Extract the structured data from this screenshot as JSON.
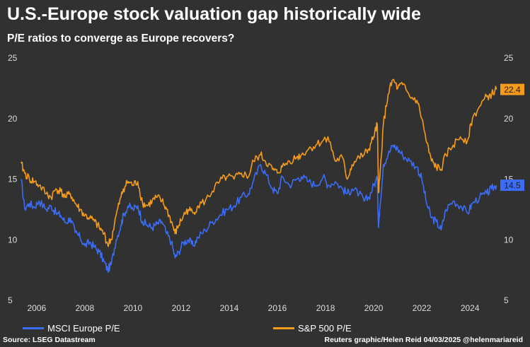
{
  "header": {
    "title": "U.S.-Europe stock valuation gap historically wide",
    "subtitle": "P/E ratios to converge as Europe recovers?"
  },
  "footer": {
    "source": "Source: LSEG Datastream",
    "credit": "Reuters graphic/Helen Reid 04/03/2025 @helenmariareid"
  },
  "colors": {
    "background": "#313131",
    "europe": "#3a6cf5",
    "sp500": "#f59b1c",
    "text": "#ffffff"
  },
  "chart_data": {
    "type": "line",
    "title": "U.S.-Europe stock valuation gap historically wide",
    "subtitle": "P/E ratios to converge as Europe recovers?",
    "xlim": [
      2005.3,
      2025.2
    ],
    "ylim": [
      5,
      25
    ],
    "x_ticks": [
      "2006",
      "2008",
      "2010",
      "2012",
      "2014",
      "2016",
      "2018",
      "2020",
      "2022",
      "2024"
    ],
    "y_ticks": [
      "5",
      "10",
      "15",
      "20",
      "25"
    ],
    "grid": false,
    "legend": "bottom",
    "series": [
      {
        "name": "MSCI Europe P/E",
        "color": "#3a6cf5",
        "end_label": "14.5",
        "points": [
          [
            2005.35,
            15.0
          ],
          [
            2005.5,
            12.6
          ],
          [
            2005.7,
            13.0
          ],
          [
            2005.9,
            12.7
          ],
          [
            2006.1,
            13.2
          ],
          [
            2006.4,
            12.5
          ],
          [
            2006.6,
            12.8
          ],
          [
            2006.8,
            12.2
          ],
          [
            2007.0,
            12.0
          ],
          [
            2007.2,
            11.4
          ],
          [
            2007.4,
            11.8
          ],
          [
            2007.6,
            10.6
          ],
          [
            2007.8,
            10.2
          ],
          [
            2008.0,
            9.5
          ],
          [
            2008.2,
            9.8
          ],
          [
            2008.4,
            9.4
          ],
          [
            2008.6,
            9.0
          ],
          [
            2008.8,
            8.2
          ],
          [
            2008.95,
            7.5
          ],
          [
            2009.1,
            8.0
          ],
          [
            2009.3,
            10.0
          ],
          [
            2009.5,
            11.2
          ],
          [
            2009.6,
            12.0
          ],
          [
            2009.8,
            12.8
          ],
          [
            2010.0,
            12.5
          ],
          [
            2010.2,
            12.8
          ],
          [
            2010.4,
            11.5
          ],
          [
            2010.6,
            11.2
          ],
          [
            2010.8,
            11.0
          ],
          [
            2011.0,
            11.3
          ],
          [
            2011.2,
            11.5
          ],
          [
            2011.4,
            10.5
          ],
          [
            2011.6,
            9.8
          ],
          [
            2011.75,
            8.5
          ],
          [
            2011.9,
            9.0
          ],
          [
            2012.1,
            9.8
          ],
          [
            2012.3,
            10.0
          ],
          [
            2012.5,
            9.5
          ],
          [
            2012.7,
            10.2
          ],
          [
            2013.0,
            10.8
          ],
          [
            2013.3,
            11.5
          ],
          [
            2013.6,
            12.0
          ],
          [
            2013.9,
            12.5
          ],
          [
            2014.2,
            12.8
          ],
          [
            2014.5,
            13.5
          ],
          [
            2014.8,
            13.8
          ],
          [
            2015.0,
            14.8
          ],
          [
            2015.3,
            16.2
          ],
          [
            2015.5,
            15.5
          ],
          [
            2015.8,
            14.2
          ],
          [
            2016.0,
            13.8
          ],
          [
            2016.2,
            15.2
          ],
          [
            2016.5,
            14.5
          ],
          [
            2016.8,
            15.0
          ],
          [
            2017.0,
            15.2
          ],
          [
            2017.3,
            14.8
          ],
          [
            2017.6,
            14.5
          ],
          [
            2017.9,
            15.2
          ],
          [
            2018.1,
            14.5
          ],
          [
            2018.4,
            14.8
          ],
          [
            2018.7,
            14.2
          ],
          [
            2018.9,
            13.8
          ],
          [
            2019.1,
            14.2
          ],
          [
            2019.4,
            13.8
          ],
          [
            2019.6,
            13.2
          ],
          [
            2019.8,
            13.5
          ],
          [
            2020.0,
            14.5
          ],
          [
            2020.15,
            15.0
          ],
          [
            2020.2,
            11.0
          ],
          [
            2020.25,
            12.5
          ],
          [
            2020.4,
            16.2
          ],
          [
            2020.6,
            17.0
          ],
          [
            2020.8,
            17.8
          ],
          [
            2021.0,
            17.5
          ],
          [
            2021.2,
            17.0
          ],
          [
            2021.5,
            16.5
          ],
          [
            2021.8,
            16.0
          ],
          [
            2022.0,
            15.0
          ],
          [
            2022.2,
            13.0
          ],
          [
            2022.4,
            11.8
          ],
          [
            2022.6,
            11.5
          ],
          [
            2022.8,
            10.8
          ],
          [
            2023.0,
            12.5
          ],
          [
            2023.3,
            13.2
          ],
          [
            2023.6,
            12.8
          ],
          [
            2023.9,
            12.2
          ],
          [
            2024.1,
            13.0
          ],
          [
            2024.4,
            13.5
          ],
          [
            2024.7,
            13.8
          ],
          [
            2024.9,
            14.2
          ],
          [
            2025.1,
            14.5
          ]
        ]
      },
      {
        "name": "S&P 500 P/E",
        "color": "#f59b1c",
        "end_label": "22.4",
        "points": [
          [
            2005.35,
            16.3
          ],
          [
            2005.5,
            15.5
          ],
          [
            2005.7,
            15.0
          ],
          [
            2005.9,
            14.8
          ],
          [
            2006.1,
            14.5
          ],
          [
            2006.4,
            13.8
          ],
          [
            2006.6,
            13.5
          ],
          [
            2006.8,
            14.2
          ],
          [
            2007.0,
            14.0
          ],
          [
            2007.2,
            13.5
          ],
          [
            2007.4,
            13.8
          ],
          [
            2007.6,
            13.0
          ],
          [
            2007.8,
            12.5
          ],
          [
            2008.0,
            12.0
          ],
          [
            2008.2,
            11.8
          ],
          [
            2008.4,
            11.5
          ],
          [
            2008.6,
            11.0
          ],
          [
            2008.8,
            10.5
          ],
          [
            2008.95,
            9.6
          ],
          [
            2009.1,
            10.0
          ],
          [
            2009.3,
            12.0
          ],
          [
            2009.5,
            13.5
          ],
          [
            2009.6,
            14.2
          ],
          [
            2009.8,
            14.8
          ],
          [
            2010.0,
            14.5
          ],
          [
            2010.2,
            14.8
          ],
          [
            2010.4,
            13.0
          ],
          [
            2010.6,
            12.8
          ],
          [
            2010.8,
            13.2
          ],
          [
            2011.0,
            13.5
          ],
          [
            2011.2,
            13.2
          ],
          [
            2011.4,
            12.5
          ],
          [
            2011.6,
            11.5
          ],
          [
            2011.75,
            10.5
          ],
          [
            2011.9,
            11.2
          ],
          [
            2012.1,
            12.0
          ],
          [
            2012.3,
            12.5
          ],
          [
            2012.5,
            12.2
          ],
          [
            2012.7,
            12.8
          ],
          [
            2013.0,
            13.2
          ],
          [
            2013.3,
            14.0
          ],
          [
            2013.6,
            14.8
          ],
          [
            2013.9,
            15.2
          ],
          [
            2014.2,
            15.0
          ],
          [
            2014.5,
            15.5
          ],
          [
            2014.8,
            15.2
          ],
          [
            2015.0,
            16.5
          ],
          [
            2015.3,
            17.0
          ],
          [
            2015.5,
            16.5
          ],
          [
            2015.8,
            15.8
          ],
          [
            2016.0,
            15.5
          ],
          [
            2016.2,
            16.0
          ],
          [
            2016.5,
            16.5
          ],
          [
            2016.8,
            16.8
          ],
          [
            2017.0,
            17.0
          ],
          [
            2017.3,
            17.5
          ],
          [
            2017.6,
            17.8
          ],
          [
            2017.9,
            18.2
          ],
          [
            2018.1,
            18.5
          ],
          [
            2018.4,
            16.5
          ],
          [
            2018.7,
            16.8
          ],
          [
            2018.9,
            15.0
          ],
          [
            2019.1,
            16.2
          ],
          [
            2019.4,
            16.8
          ],
          [
            2019.6,
            17.0
          ],
          [
            2019.8,
            17.5
          ],
          [
            2020.0,
            18.5
          ],
          [
            2020.15,
            19.5
          ],
          [
            2020.2,
            14.0
          ],
          [
            2020.25,
            15.0
          ],
          [
            2020.4,
            19.5
          ],
          [
            2020.6,
            22.0
          ],
          [
            2020.8,
            23.2
          ],
          [
            2021.0,
            22.5
          ],
          [
            2021.2,
            22.8
          ],
          [
            2021.5,
            21.8
          ],
          [
            2021.8,
            21.5
          ],
          [
            2022.0,
            20.0
          ],
          [
            2022.2,
            18.0
          ],
          [
            2022.4,
            16.5
          ],
          [
            2022.6,
            16.0
          ],
          [
            2022.8,
            15.8
          ],
          [
            2023.0,
            17.0
          ],
          [
            2023.3,
            17.8
          ],
          [
            2023.6,
            18.5
          ],
          [
            2023.9,
            18.2
          ],
          [
            2024.1,
            20.0
          ],
          [
            2024.4,
            21.0
          ],
          [
            2024.7,
            21.8
          ],
          [
            2024.9,
            22.0
          ],
          [
            2025.1,
            22.4
          ]
        ]
      }
    ]
  }
}
